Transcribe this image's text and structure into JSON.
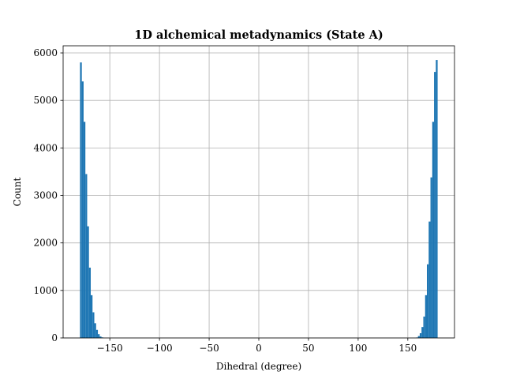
{
  "chart_data": {
    "type": "bar",
    "title": "1D alchemical metadynamics (State A)",
    "xlabel": "Dihedral (degree)",
    "ylabel": "Count",
    "xlim": [
      -197,
      197
    ],
    "ylim": [
      0,
      6150
    ],
    "xticks": [
      -150,
      -100,
      -50,
      0,
      50,
      100,
      150
    ],
    "xtick_labels": [
      "−150",
      "−100",
      "−50",
      "0",
      "50",
      "100",
      "150"
    ],
    "yticks": [
      0,
      1000,
      2000,
      3000,
      4000,
      5000,
      6000
    ],
    "ytick_labels": [
      "0",
      "1000",
      "2000",
      "3000",
      "4000",
      "5000",
      "6000"
    ],
    "grid": true,
    "bin_width": 1.8,
    "bar_color": "#1f77b4",
    "series": [
      {
        "bins": [
          {
            "x0": -180.0,
            "count": 5800
          },
          {
            "x0": -178.2,
            "count": 5400
          },
          {
            "x0": -176.4,
            "count": 4550
          },
          {
            "x0": -174.6,
            "count": 3450
          },
          {
            "x0": -172.8,
            "count": 2350
          },
          {
            "x0": -171.0,
            "count": 1480
          },
          {
            "x0": -169.2,
            "count": 900
          },
          {
            "x0": -167.4,
            "count": 540
          },
          {
            "x0": -165.6,
            "count": 310
          },
          {
            "x0": -163.8,
            "count": 170
          },
          {
            "x0": -162.0,
            "count": 80
          },
          {
            "x0": -160.2,
            "count": 30
          },
          {
            "x0": -158.4,
            "count": 12
          },
          {
            "x0": 158.4,
            "count": 10
          },
          {
            "x0": 160.2,
            "count": 40
          },
          {
            "x0": 162.0,
            "count": 100
          },
          {
            "x0": 163.8,
            "count": 230
          },
          {
            "x0": 165.6,
            "count": 450
          },
          {
            "x0": 167.4,
            "count": 900
          },
          {
            "x0": 169.2,
            "count": 1550
          },
          {
            "x0": 171.0,
            "count": 2450
          },
          {
            "x0": 172.8,
            "count": 3380
          },
          {
            "x0": 174.6,
            "count": 4550
          },
          {
            "x0": 176.4,
            "count": 5600
          },
          {
            "x0": 178.2,
            "count": 5850
          }
        ]
      }
    ]
  }
}
